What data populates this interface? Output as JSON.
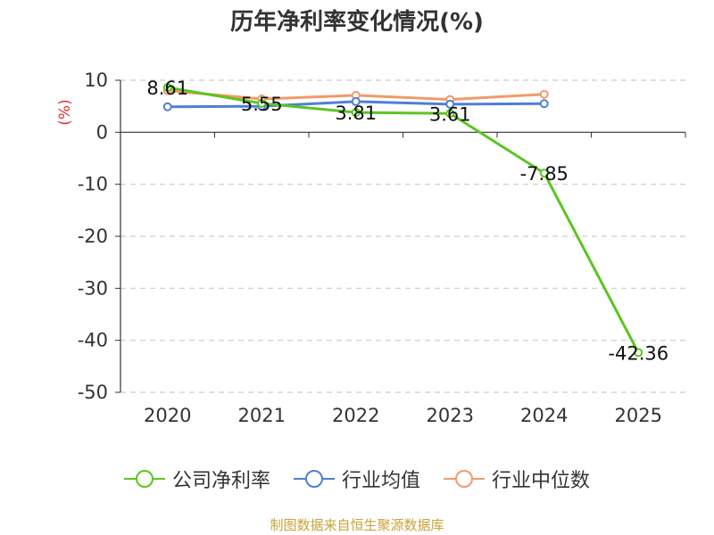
{
  "chart_data": {
    "type": "line",
    "title": "历年净利率变化情况(%)",
    "ylabel": "(%)",
    "xlabel": "",
    "categories": [
      "2020",
      "2021",
      "2022",
      "2023",
      "2024",
      "2025"
    ],
    "ylim": [
      -50,
      10
    ],
    "yticks": [
      10,
      0,
      -10,
      -20,
      -30,
      -40,
      -50
    ],
    "grid": true,
    "legend_position": "bottom",
    "series": [
      {
        "name": "公司净利率",
        "color": "#5cc520",
        "values": [
          8.61,
          5.55,
          3.81,
          3.61,
          -7.85,
          -42.36
        ],
        "labels": [
          "8.61",
          "5.55",
          "3.81",
          "3.61",
          "-7.85",
          "-42.36"
        ]
      },
      {
        "name": "行业均值",
        "color": "#4f7fd6",
        "values": [
          4.9,
          5.0,
          5.9,
          5.4,
          5.5,
          null
        ]
      },
      {
        "name": "行业中位数",
        "color": "#f29a6a",
        "values": [
          8.0,
          6.4,
          7.1,
          6.3,
          7.3,
          null
        ]
      }
    ]
  },
  "colors": {
    "ylabel": "#e0302c",
    "axis": "#333333",
    "grid": "#cccccc"
  },
  "legend_icon": "circle-line-icon",
  "source": "制图数据来自恒生聚源数据库"
}
